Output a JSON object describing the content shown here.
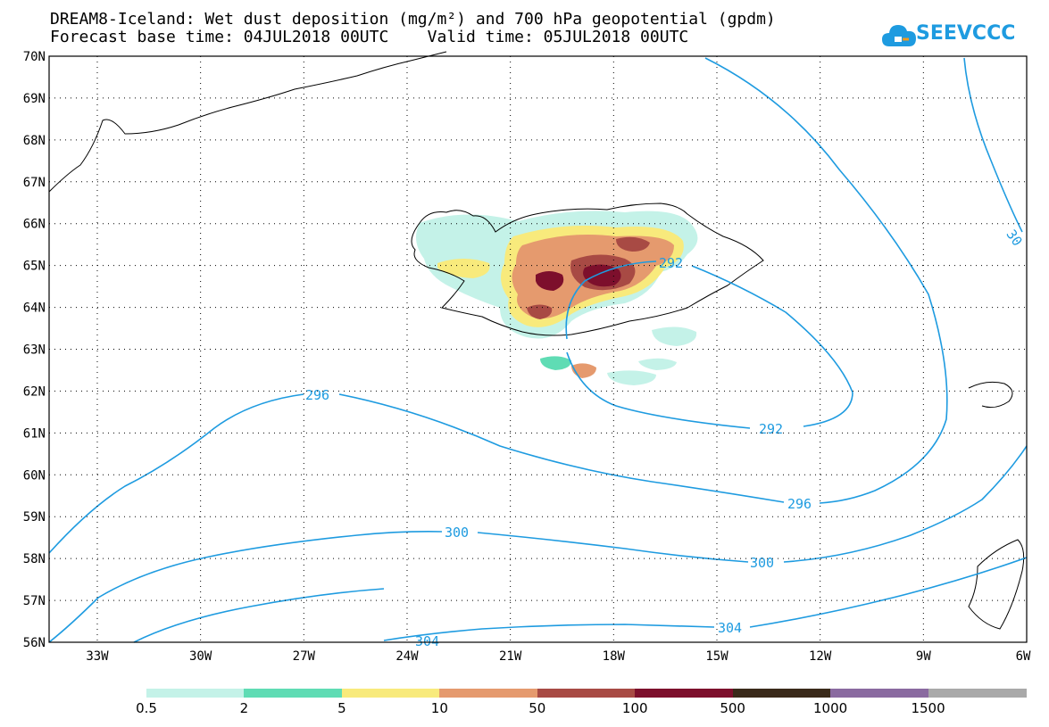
{
  "header": {
    "title_line1": "DREAM8-Iceland: Wet dust deposition (mg/m²) and 700 hPa geopotential (gpdm)",
    "title_line2": "Forecast base time: 04JUL2018 00UTC    Valid time: 05JUL2018 00UTC"
  },
  "logo": {
    "text": "SEEVCCC",
    "color": "#1e9be0",
    "icon": "cloud-icon"
  },
  "map": {
    "lat_labels": [
      "70N",
      "69N",
      "68N",
      "67N",
      "66N",
      "65N",
      "64N",
      "63N",
      "62N",
      "61N",
      "60N",
      "59N",
      "58N",
      "57N",
      "56N"
    ],
    "lon_labels": [
      "33W",
      "30W",
      "27W",
      "24W",
      "21W",
      "18W",
      "15W",
      "12W",
      "9W",
      "6W"
    ],
    "contour_color": "#1e9be0",
    "contour_labels": [
      "292",
      "292",
      "296",
      "296",
      "300",
      "300",
      "304",
      "304",
      "30"
    ]
  },
  "colorbar": {
    "labels": [
      "0.5",
      "2",
      "5",
      "10",
      "50",
      "100",
      "500",
      "1000",
      "1500"
    ],
    "colors": [
      "#c4f2e8",
      "#5fdcb4",
      "#f8ea7c",
      "#e59a6e",
      "#a84a44",
      "#7d0f2c",
      "#3a2a1a",
      "#8a6aa0",
      "#a9a9a9"
    ]
  }
}
